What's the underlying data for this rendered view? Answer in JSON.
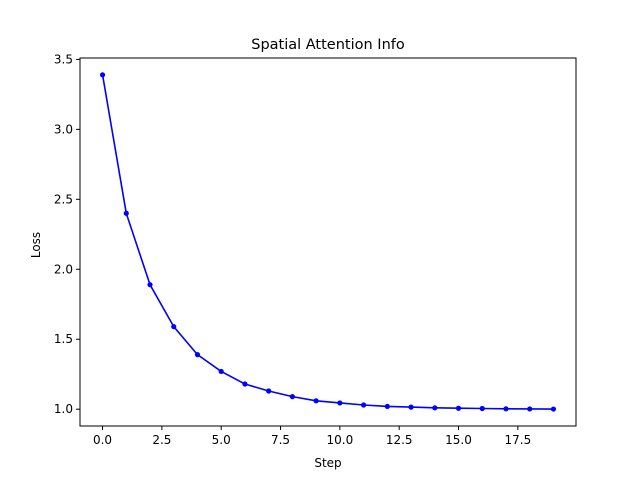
{
  "chart_data": {
    "type": "line",
    "title": "Spatial Attention Info",
    "xlabel": "Step",
    "ylabel": "Loss",
    "xlim": [
      -0.95,
      19.95
    ],
    "ylim": [
      0.88,
      3.51
    ],
    "grid": false,
    "line_color": "#0000ff",
    "xticks": [
      0.0,
      2.5,
      5.0,
      7.5,
      10.0,
      12.5,
      15.0,
      17.5
    ],
    "xtick_labels": [
      "0.0",
      "2.5",
      "5.0",
      "7.5",
      "10.0",
      "12.5",
      "15.0",
      "17.5"
    ],
    "yticks": [
      1.0,
      1.5,
      2.0,
      2.5,
      3.0,
      3.5
    ],
    "ytick_labels": [
      "1.0",
      "1.5",
      "2.0",
      "2.5",
      "3.0",
      "3.5"
    ],
    "series": [
      {
        "x": [
          0,
          1,
          2,
          3,
          4,
          5,
          6,
          7,
          8,
          9,
          10,
          11,
          12,
          13,
          14,
          15,
          16,
          17,
          18,
          19
        ],
        "y": [
          3.39,
          2.4,
          1.89,
          1.59,
          1.39,
          1.27,
          1.18,
          1.13,
          1.09,
          1.06,
          1.045,
          1.03,
          1.02,
          1.015,
          1.01,
          1.007,
          1.005,
          1.003,
          1.002,
          1.001
        ]
      }
    ]
  }
}
